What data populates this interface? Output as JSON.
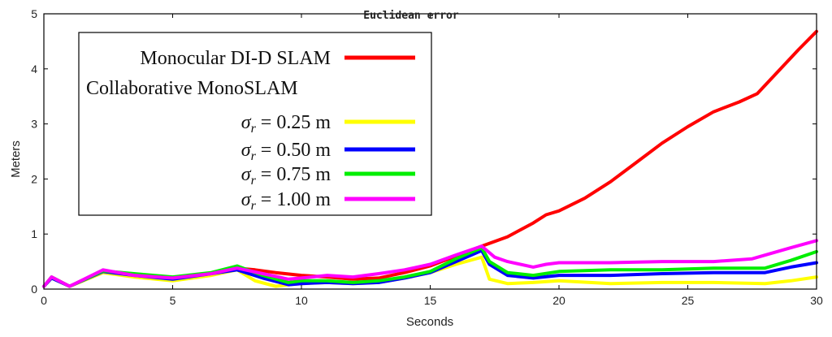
{
  "chart_data": {
    "type": "line",
    "title": "Euclidean error",
    "xlabel": "Seconds",
    "ylabel": "Meters",
    "xlim": [
      0,
      30
    ],
    "ylim": [
      0,
      5
    ],
    "xticks": [
      "0",
      "5",
      "10",
      "15",
      "20",
      "25",
      "30"
    ],
    "yticks": [
      "0",
      "1",
      "2",
      "3",
      "4",
      "5"
    ],
    "legend_placement": "top-left",
    "legend_header": "Collaborative MonoSLAM",
    "series": [
      {
        "name": "Monocular DI-D SLAM",
        "color": "#ff0000",
        "x": [
          0,
          0.3,
          1,
          2.3,
          3.5,
          5,
          6.5,
          7.5,
          8.2,
          9,
          10,
          11,
          12,
          13,
          14,
          15,
          16,
          17,
          18,
          19,
          19.5,
          20,
          21,
          22,
          23,
          24,
          25,
          26,
          27,
          27.7,
          28.5,
          29.3,
          30
        ],
        "y": [
          0.05,
          0.22,
          0.05,
          0.33,
          0.25,
          0.2,
          0.28,
          0.38,
          0.35,
          0.3,
          0.25,
          0.22,
          0.18,
          0.2,
          0.3,
          0.42,
          0.6,
          0.78,
          0.95,
          1.2,
          1.35,
          1.42,
          1.65,
          1.95,
          2.3,
          2.65,
          2.95,
          3.22,
          3.4,
          3.55,
          3.95,
          4.35,
          4.68
        ]
      },
      {
        "name": "σr = 0.25 m",
        "color": "#ffff00",
        "x": [
          0,
          0.3,
          1,
          2.3,
          3.5,
          5,
          6.5,
          7.5,
          8.2,
          9,
          9.5,
          10,
          11,
          12,
          13,
          14,
          15,
          16,
          17,
          17.3,
          18,
          19,
          20,
          22,
          24,
          26,
          28,
          29,
          30
        ],
        "y": [
          0.05,
          0.2,
          0.05,
          0.3,
          0.22,
          0.15,
          0.25,
          0.35,
          0.15,
          0.05,
          0.08,
          0.1,
          0.12,
          0.1,
          0.12,
          0.2,
          0.3,
          0.45,
          0.58,
          0.18,
          0.1,
          0.12,
          0.15,
          0.1,
          0.12,
          0.12,
          0.1,
          0.15,
          0.22
        ]
      },
      {
        "name": "σr = 0.50 m",
        "color": "#0000ff",
        "x": [
          0,
          0.3,
          1,
          2.3,
          3.5,
          5,
          6.5,
          7.5,
          8.5,
          9.5,
          10,
          11,
          12,
          13,
          14,
          15,
          16,
          17,
          17.3,
          18,
          19,
          20,
          22,
          24,
          26,
          28,
          29,
          30
        ],
        "y": [
          0.05,
          0.2,
          0.05,
          0.32,
          0.25,
          0.18,
          0.28,
          0.35,
          0.2,
          0.08,
          0.1,
          0.12,
          0.1,
          0.12,
          0.2,
          0.3,
          0.5,
          0.7,
          0.45,
          0.25,
          0.2,
          0.25,
          0.25,
          0.28,
          0.3,
          0.3,
          0.4,
          0.48
        ]
      },
      {
        "name": "σr = 0.75 m",
        "color": "#00ee00",
        "x": [
          0,
          0.3,
          1,
          2.3,
          3.5,
          5,
          6.5,
          7.5,
          8.5,
          9.5,
          10,
          11,
          12,
          13,
          14,
          15,
          16,
          17,
          17.3,
          18,
          19,
          20,
          22,
          24,
          26,
          28,
          29,
          30
        ],
        "y": [
          0.05,
          0.22,
          0.05,
          0.33,
          0.28,
          0.22,
          0.3,
          0.42,
          0.25,
          0.12,
          0.15,
          0.15,
          0.12,
          0.15,
          0.22,
          0.32,
          0.55,
          0.75,
          0.5,
          0.3,
          0.25,
          0.32,
          0.35,
          0.35,
          0.38,
          0.38,
          0.52,
          0.68
        ]
      },
      {
        "name": "σr = 1.00 m",
        "color": "#ff00ff",
        "x": [
          0,
          0.3,
          1,
          2.3,
          3.5,
          5,
          6.5,
          7.5,
          8.5,
          9.5,
          10,
          11,
          12,
          13,
          14,
          15,
          16,
          17,
          17.5,
          18,
          19,
          19.5,
          20,
          22,
          24,
          26,
          27.5,
          29,
          30
        ],
        "y": [
          0.05,
          0.22,
          0.05,
          0.35,
          0.25,
          0.2,
          0.28,
          0.38,
          0.28,
          0.18,
          0.2,
          0.25,
          0.22,
          0.28,
          0.35,
          0.45,
          0.62,
          0.78,
          0.58,
          0.5,
          0.4,
          0.45,
          0.48,
          0.48,
          0.5,
          0.5,
          0.55,
          0.75,
          0.88
        ]
      }
    ]
  }
}
